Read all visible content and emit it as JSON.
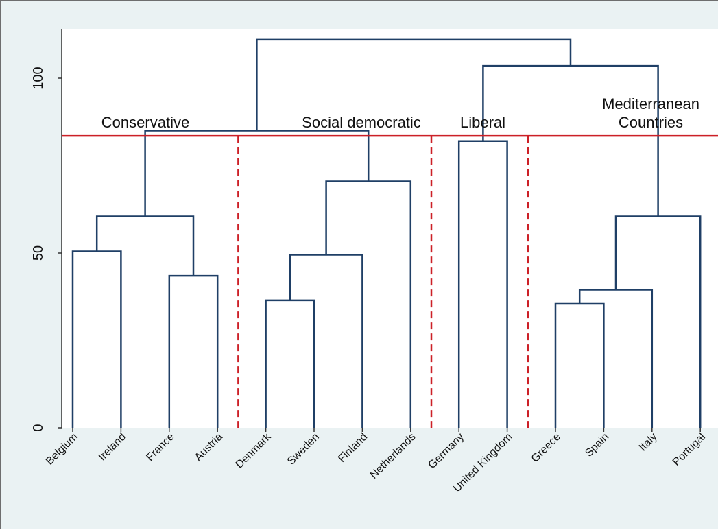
{
  "colors": {
    "panel_bg": "#eaf2f3",
    "plot_bg": "#ffffff",
    "branch": "#1f3f66",
    "cut_line": "#cc2027"
  },
  "chart_data": {
    "type": "dendrogram",
    "leaves": [
      "Belgium",
      "Ireland",
      "France",
      "Austria",
      "Denmark",
      "Sweden",
      "Finland",
      "Netherlands",
      "Germany",
      "United Kingdom",
      "Greece",
      "Spain",
      "Italy",
      "Portugal"
    ],
    "merges": [
      {
        "left": "Belgium",
        "right": "Ireland",
        "height": 50.5
      },
      {
        "left": "France",
        "right": "Austria",
        "height": 43.5
      },
      {
        "left": "Belgium+Ireland",
        "right": "France+Austria",
        "height": 60.5
      },
      {
        "left": "Denmark",
        "right": "Sweden",
        "height": 36.5
      },
      {
        "left": "Denmark+Sweden",
        "right": "Finland",
        "height": 49.5
      },
      {
        "left": "Denmark+Sweden+Finland",
        "right": "Netherlands",
        "height": 70.5
      },
      {
        "left": "Conservative",
        "right": "Social democratic",
        "height": 85
      },
      {
        "left": "Germany",
        "right": "United Kingdom",
        "height": 82
      },
      {
        "left": "Greece",
        "right": "Spain",
        "height": 35.5
      },
      {
        "left": "Greece+Spain",
        "right": "Italy",
        "height": 39.5
      },
      {
        "left": "Greece+Spain+Italy",
        "right": "Portugal",
        "height": 60.5
      },
      {
        "left": "Liberal",
        "right": "Mediterranean Countries",
        "height": 103.5
      },
      {
        "left": "Conservative+Social democratic",
        "right": "Liberal+Mediterranean Countries",
        "height": 111
      }
    ],
    "cut_height": 83.5,
    "groups": [
      {
        "label": "Conservative",
        "leaves": [
          "Belgium",
          "Ireland",
          "France",
          "Austria"
        ]
      },
      {
        "label": "Social democratic",
        "leaves": [
          "Denmark",
          "Sweden",
          "Finland",
          "Netherlands"
        ]
      },
      {
        "label": "Liberal",
        "leaves": [
          "Germany",
          "United Kingdom"
        ]
      },
      {
        "label": "Mediterranean\nCountries",
        "leaves": [
          "Greece",
          "Spain",
          "Italy",
          "Portugal"
        ]
      }
    ],
    "yticks": [
      0,
      50,
      100
    ],
    "ylim": [
      0,
      114
    ]
  }
}
